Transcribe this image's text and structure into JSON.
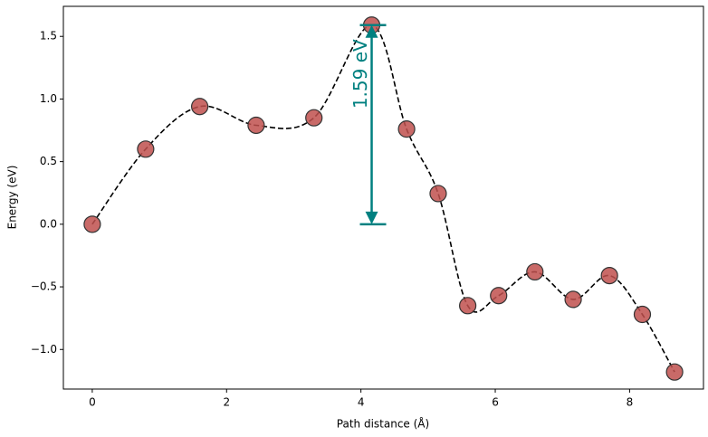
{
  "chart_data": {
    "type": "line",
    "xlabel": "Path distance (Å)",
    "ylabel": "Energy (eV)",
    "x": [
      0,
      0.795,
      1.6,
      2.44,
      3.3,
      4.16,
      4.68,
      5.15,
      5.59,
      6.05,
      6.59,
      7.16,
      7.7,
      8.19,
      8.67
    ],
    "series": [
      {
        "color": "#c0504d",
        "values": [
          0,
          0.6,
          0.94,
          0.79,
          0.85,
          1.59,
          0.76,
          0.245,
          -0.65,
          -0.57,
          -0.38,
          -0.6,
          -0.41,
          -0.72,
          -1.18
        ]
      }
    ],
    "xlim": [
      -0.43,
      9.1
    ],
    "ylim": [
      -1.316,
      1.74
    ],
    "xticks": [
      0,
      2,
      4,
      6,
      8
    ],
    "yticks": [
      {
        "value": -1.0,
        "label": "−1.0"
      },
      {
        "value": -0.5,
        "label": "−0.5"
      },
      {
        "value": 0.0,
        "label": "0.0"
      },
      {
        "value": 0.5,
        "label": "0.5"
      },
      {
        "value": 1.0,
        "label": "1.0"
      },
      {
        "value": 1.5,
        "label": "1.5"
      }
    ],
    "annotation": {
      "label": "1.59 eV",
      "x": 4.16,
      "from": 0,
      "to": 1.59,
      "color": "#008080"
    }
  }
}
